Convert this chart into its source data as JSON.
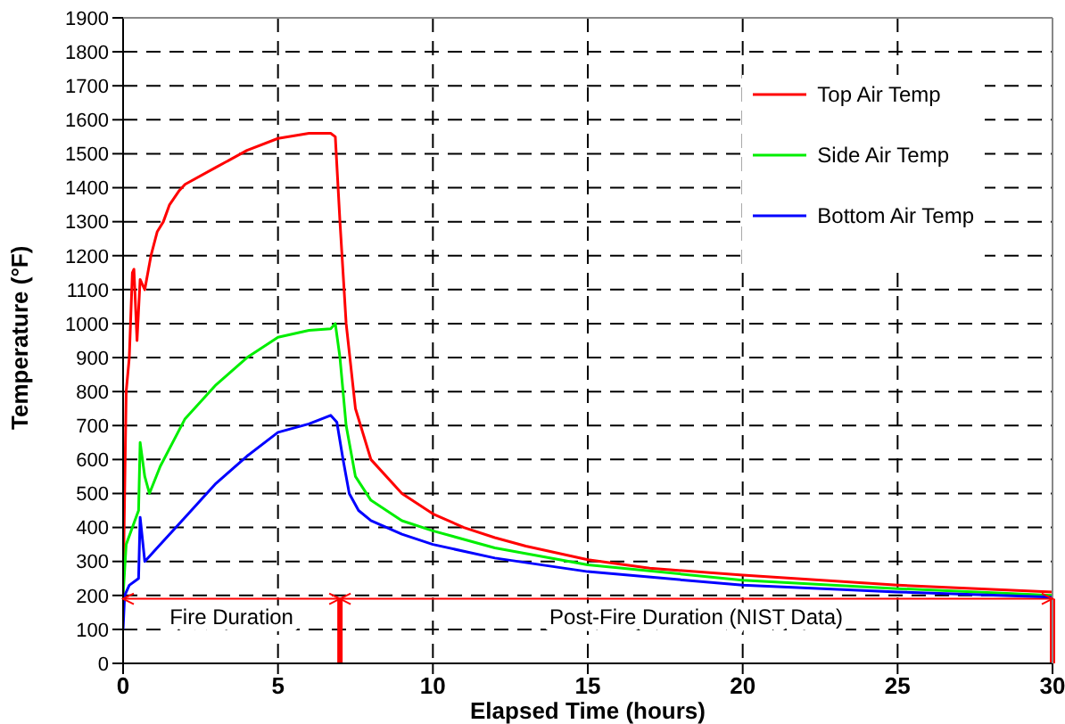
{
  "chart_data": {
    "type": "line",
    "xlabel": "Elapsed Time (hours)",
    "ylabel": "Temperature (°F)",
    "xlim": [
      0,
      30
    ],
    "xticks": [
      0,
      5,
      10,
      15,
      20,
      25,
      30
    ],
    "ylim": [
      0,
      1900
    ],
    "yticks": [
      0,
      100,
      200,
      300,
      400,
      500,
      600,
      700,
      800,
      900,
      1000,
      1100,
      1200,
      1300,
      1400,
      1500,
      1600,
      1700,
      1800,
      1900
    ],
    "grid": true,
    "legend": "top right",
    "marker": "none",
    "line_style": "solid",
    "series": [
      {
        "name": "Top Air Temp",
        "color": "#ff0000",
        "x": [
          0,
          0.1,
          0.2,
          0.3,
          0.35,
          0.45,
          0.55,
          0.7,
          0.9,
          1.1,
          1.3,
          1.5,
          1.8,
          2,
          3,
          4,
          5,
          6,
          6.7,
          6.85,
          7,
          7.2,
          7.5,
          8,
          9,
          10,
          11,
          12,
          13,
          15,
          17,
          20,
          25,
          30
        ],
        "values": [
          200,
          800,
          900,
          1150,
          1160,
          950,
          1130,
          1100,
          1200,
          1270,
          1300,
          1350,
          1390,
          1410,
          1460,
          1510,
          1545,
          1560,
          1560,
          1550,
          1300,
          1000,
          750,
          600,
          500,
          440,
          400,
          370,
          345,
          305,
          280,
          260,
          230,
          210
        ]
      },
      {
        "name": "Side Air Temp",
        "color": "#00ee00",
        "x": [
          0,
          0.1,
          0.3,
          0.5,
          0.55,
          0.7,
          0.85,
          1.2,
          2,
          3,
          4,
          5,
          6,
          6.7,
          6.85,
          7,
          7.2,
          7.5,
          8,
          9,
          10,
          12,
          15,
          20,
          25,
          30
        ],
        "values": [
          200,
          350,
          400,
          450,
          650,
          550,
          500,
          580,
          720,
          820,
          900,
          960,
          980,
          985,
          1000,
          900,
          700,
          550,
          480,
          420,
          390,
          340,
          290,
          245,
          220,
          200
        ]
      },
      {
        "name": "Bottom Air Temp",
        "color": "#0000ff",
        "x": [
          0,
          0.05,
          0.2,
          0.5,
          0.55,
          0.7,
          1,
          2,
          3,
          4,
          5,
          6,
          6.7,
          6.9,
          7.1,
          7.3,
          7.6,
          8,
          9,
          10,
          12,
          15,
          20,
          25,
          30
        ],
        "values": [
          100,
          200,
          230,
          250,
          430,
          300,
          330,
          430,
          530,
          610,
          680,
          705,
          730,
          710,
          600,
          500,
          450,
          420,
          380,
          350,
          310,
          270,
          230,
          210,
          195
        ]
      }
    ],
    "ref_lines": [
      {
        "axis": "y",
        "value": 190,
        "color": "#ff0000"
      },
      {
        "axis": "x",
        "value": 7,
        "color": "#ff0000"
      },
      {
        "axis": "x",
        "value": 30,
        "color": "#ff0000"
      }
    ],
    "annotations": [
      "Fire Duration",
      "Post-Fire Duration (NIST Data)"
    ]
  }
}
